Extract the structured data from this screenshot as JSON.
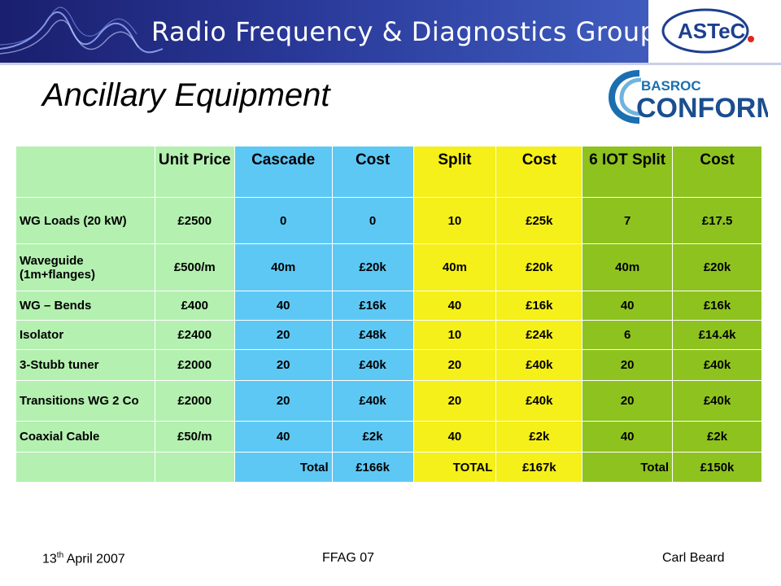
{
  "banner": {
    "title": "Radio Frequency & Diagnostics Group",
    "org_logo_text": "ASTeC"
  },
  "slide": {
    "title": "Ancillary Equipment"
  },
  "partner_logo": {
    "top_text": "BASROC",
    "main_text": "CONFORM"
  },
  "table": {
    "headers": [
      "",
      "Unit Price",
      "Cascade",
      "Cost",
      "Split",
      "Cost",
      "6 IOT Split",
      "Cost"
    ],
    "rows": [
      {
        "cells": [
          "WG Loads (20 kW)",
          "£2500",
          "0",
          "0",
          "10",
          "£25k",
          "7",
          "£17.5"
        ]
      },
      {
        "cells": [
          "Waveguide (1m+flanges)",
          "£500/m",
          "40m",
          "£20k",
          "40m",
          "£20k",
          "40m",
          "£20k"
        ]
      },
      {
        "cells": [
          "WG – Bends",
          "£400",
          "40",
          "£16k",
          "40",
          "£16k",
          "40",
          "£16k"
        ]
      },
      {
        "cells": [
          "Isolator",
          "£2400",
          "20",
          "£48k",
          "10",
          "£24k",
          "6",
          "£14.4k"
        ]
      },
      {
        "cells": [
          "3-Stubb tuner",
          "£2000",
          "20",
          "£40k",
          "20",
          "£40k",
          "20",
          "£40k"
        ]
      },
      {
        "cells": [
          "Transitions WG 2 Co",
          "£2000",
          "20",
          "£40k",
          "20",
          "£40k",
          "20",
          "£40k"
        ]
      },
      {
        "cells": [
          "Coaxial Cable",
          "£50/m",
          "40",
          "£2k",
          "40",
          "£2k",
          "40",
          "£2k"
        ]
      }
    ],
    "totals": [
      "",
      "",
      "Total",
      "£166k",
      "TOTAL",
      "£167k",
      "Total",
      "£150k"
    ],
    "column_colors": [
      "#b4f0b0",
      "#b4f0b0",
      "#5ec8f5",
      "#5ec8f5",
      "#f5ef1a",
      "#f5ef1a",
      "#8ec21f",
      "#8ec21f"
    ]
  },
  "footer": {
    "date_day": "13",
    "date_suffix": "th",
    "date_rest": " April 2007",
    "center": "FFAG 07",
    "author": "Carl Beard"
  }
}
